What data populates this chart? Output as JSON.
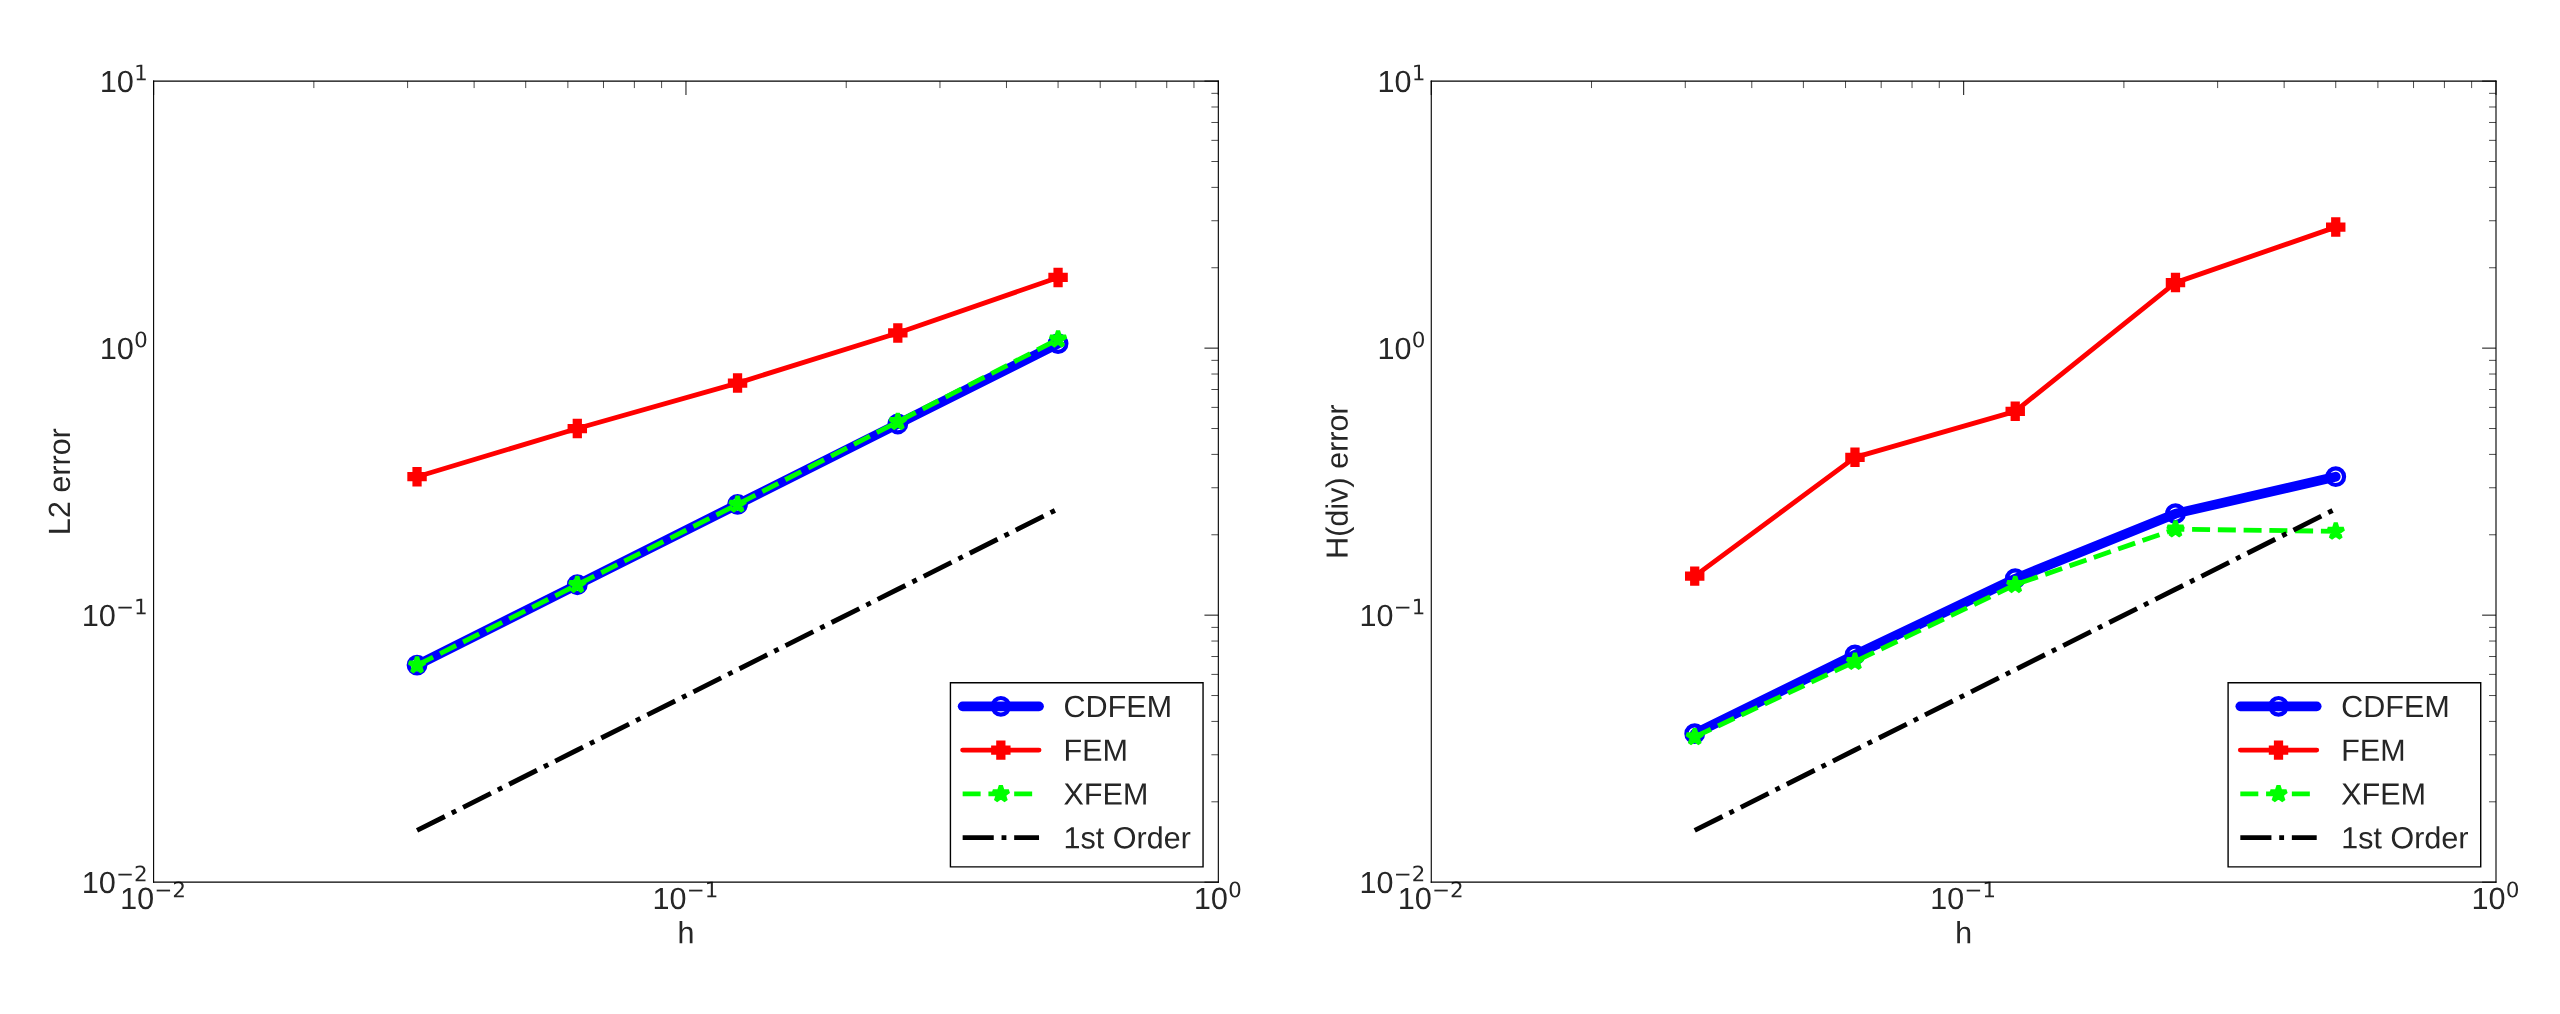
{
  "chart_data": [
    {
      "type": "line",
      "xlabel": "h",
      "ylabel": "L2 error",
      "log": "xy",
      "grid": false,
      "legend": "bottom right",
      "x": [
        0.03125,
        0.0625,
        0.125,
        0.25,
        0.5
      ],
      "xlim": [
        0.01,
        1
      ],
      "ylim": [
        0.01,
        10
      ],
      "xticks": [
        {
          "value": 0.01,
          "label": "10$^{−2}$"
        },
        {
          "value": 0.1,
          "label": "10$^{−1}$"
        },
        {
          "value": 1,
          "label": "10$^{0}$"
        }
      ],
      "yticks": [
        {
          "value": 0.01,
          "label": "10$^{−2}$"
        },
        {
          "value": 0.1,
          "label": "10$^{−1}$"
        },
        {
          "value": 1,
          "label": "10$^{0}$"
        },
        {
          "value": 10,
          "label": "10$^{1}$"
        }
      ],
      "series": [
        {
          "name": "CDFEM",
          "color": "#0000ff",
          "marker": "circle",
          "line_style": "solid",
          "values": [
            0.065,
            0.13,
            0.26,
            0.52,
            1.04
          ]
        },
        {
          "name": "FEM",
          "color": "#ff0000",
          "marker": "cross",
          "line_style": "solid",
          "values": [
            0.33,
            0.5,
            0.74,
            1.14,
            1.84
          ]
        },
        {
          "name": "XFEM",
          "color": "#00ff00",
          "marker": "star",
          "line_style": "dashed",
          "values": [
            0.065,
            0.13,
            0.26,
            0.53,
            1.08
          ]
        },
        {
          "name": "1st Order",
          "color": "#000000",
          "marker": "none",
          "line_style": "dashdot",
          "values": [
            0.015625,
            0.03125,
            0.0625,
            0.125,
            0.25
          ]
        }
      ]
    },
    {
      "type": "line",
      "xlabel": "h",
      "ylabel": "H(div) error",
      "log": "xy",
      "grid": false,
      "legend": "bottom right",
      "x": [
        0.03125,
        0.0625,
        0.125,
        0.25,
        0.5
      ],
      "xlim": [
        0.01,
        1
      ],
      "ylim": [
        0.01,
        10
      ],
      "xticks": [
        {
          "value": 0.01,
          "label": "10$^{−2}$"
        },
        {
          "value": 0.1,
          "label": "10$^{−1}$"
        },
        {
          "value": 1,
          "label": "10$^{0}$"
        }
      ],
      "yticks": [
        {
          "value": 0.01,
          "label": "10$^{−2}$"
        },
        {
          "value": 0.1,
          "label": "10$^{−1}$"
        },
        {
          "value": 1,
          "label": "10$^{0}$"
        },
        {
          "value": 10,
          "label": "10$^{1}$"
        }
      ],
      "series": [
        {
          "name": "CDFEM",
          "color": "#0000ff",
          "marker": "circle",
          "line_style": "solid",
          "values": [
            0.036,
            0.071,
            0.137,
            0.24,
            0.33
          ]
        },
        {
          "name": "FEM",
          "color": "#ff0000",
          "marker": "cross",
          "line_style": "solid",
          "values": [
            0.14,
            0.39,
            0.58,
            1.76,
            2.84
          ]
        },
        {
          "name": "XFEM",
          "color": "#00ff00",
          "marker": "star",
          "line_style": "dashed",
          "values": [
            0.035,
            0.067,
            0.13,
            0.21,
            0.206
          ]
        },
        {
          "name": "1st Order",
          "color": "#000000",
          "marker": "none",
          "line_style": "dashdot",
          "values": [
            0.015625,
            0.03125,
            0.0625,
            0.125,
            0.25
          ]
        }
      ]
    }
  ]
}
